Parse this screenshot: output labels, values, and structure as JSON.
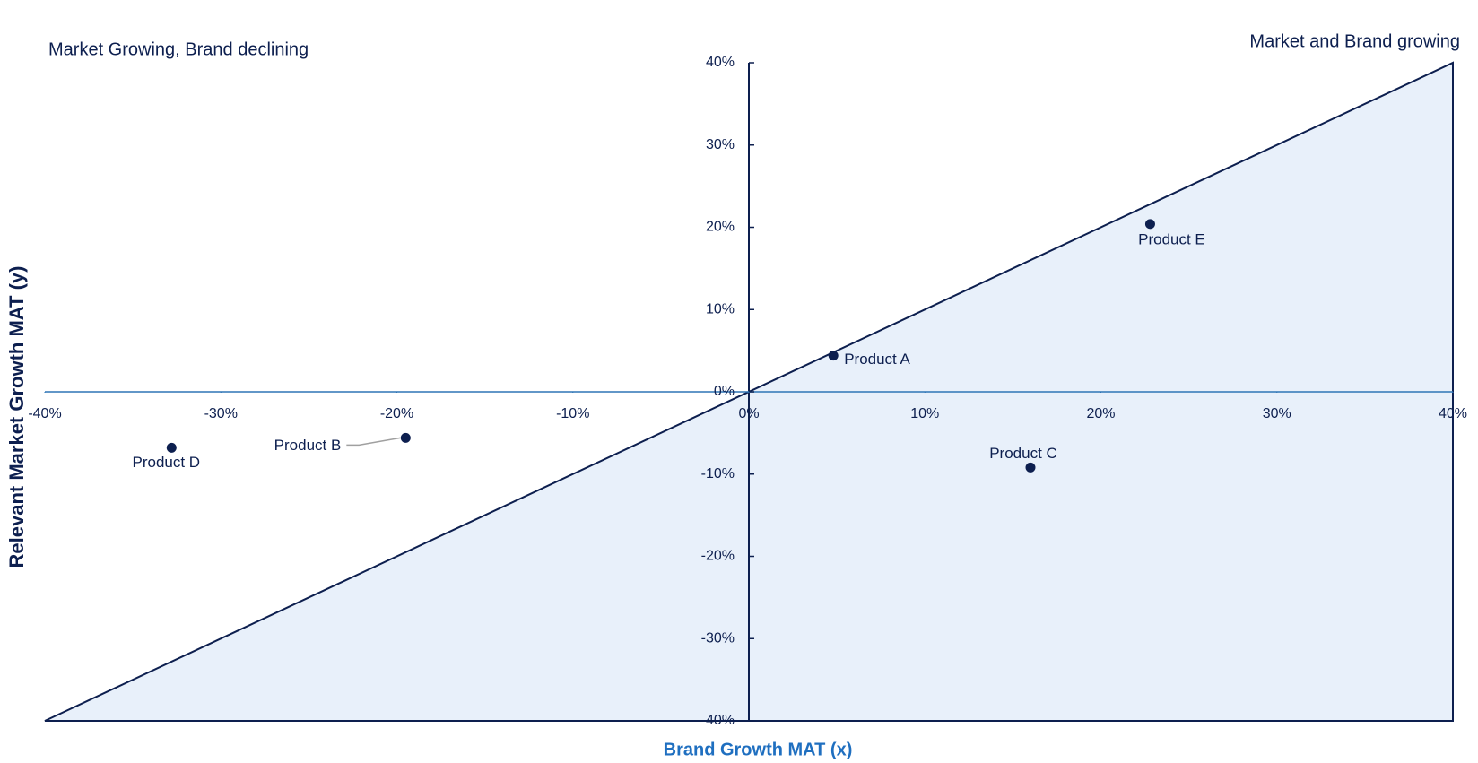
{
  "chart_data": {
    "type": "scatter",
    "annotations": [
      "Market Growing, Brand declining",
      "Market and Brand growing"
    ],
    "xlabel": "Brand Growth MAT (x)",
    "ylabel": "Relevant Market Growth MAT (y)",
    "point_labels": [
      "Product A",
      "Product B",
      "Product C",
      "Product D",
      "Product E"
    ],
    "x": [
      4.8,
      -19.5,
      16.0,
      -32.8,
      22.8
    ],
    "values": [
      4.4,
      -5.6,
      -9.2,
      -6.8,
      20.4
    ],
    "color": "#0d1f4f",
    "xlim": [
      -40,
      40
    ],
    "ylim": [
      -40,
      40
    ],
    "xticks": [
      {
        "value": -40,
        "label": "-40%"
      },
      {
        "value": -30,
        "label": "-30%"
      },
      {
        "value": -20,
        "label": "-20%"
      },
      {
        "value": -10,
        "label": "-10%"
      },
      {
        "value": 0,
        "label": "0%"
      },
      {
        "value": 10,
        "label": "10%"
      },
      {
        "value": 20,
        "label": "20%"
      },
      {
        "value": 30,
        "label": "30%"
      },
      {
        "value": 40,
        "label": "40%"
      }
    ],
    "yticks": [
      {
        "value": -40,
        "label": "-40%"
      },
      {
        "value": -30,
        "label": "-30%"
      },
      {
        "value": -20,
        "label": "-20%"
      },
      {
        "value": -10,
        "label": "-10%"
      },
      {
        "value": 0,
        "label": "0%"
      },
      {
        "value": 10,
        "label": "10%"
      },
      {
        "value": 20,
        "label": "20%"
      },
      {
        "value": 30,
        "label": "30%"
      },
      {
        "value": 40,
        "label": "40%"
      }
    ]
  }
}
